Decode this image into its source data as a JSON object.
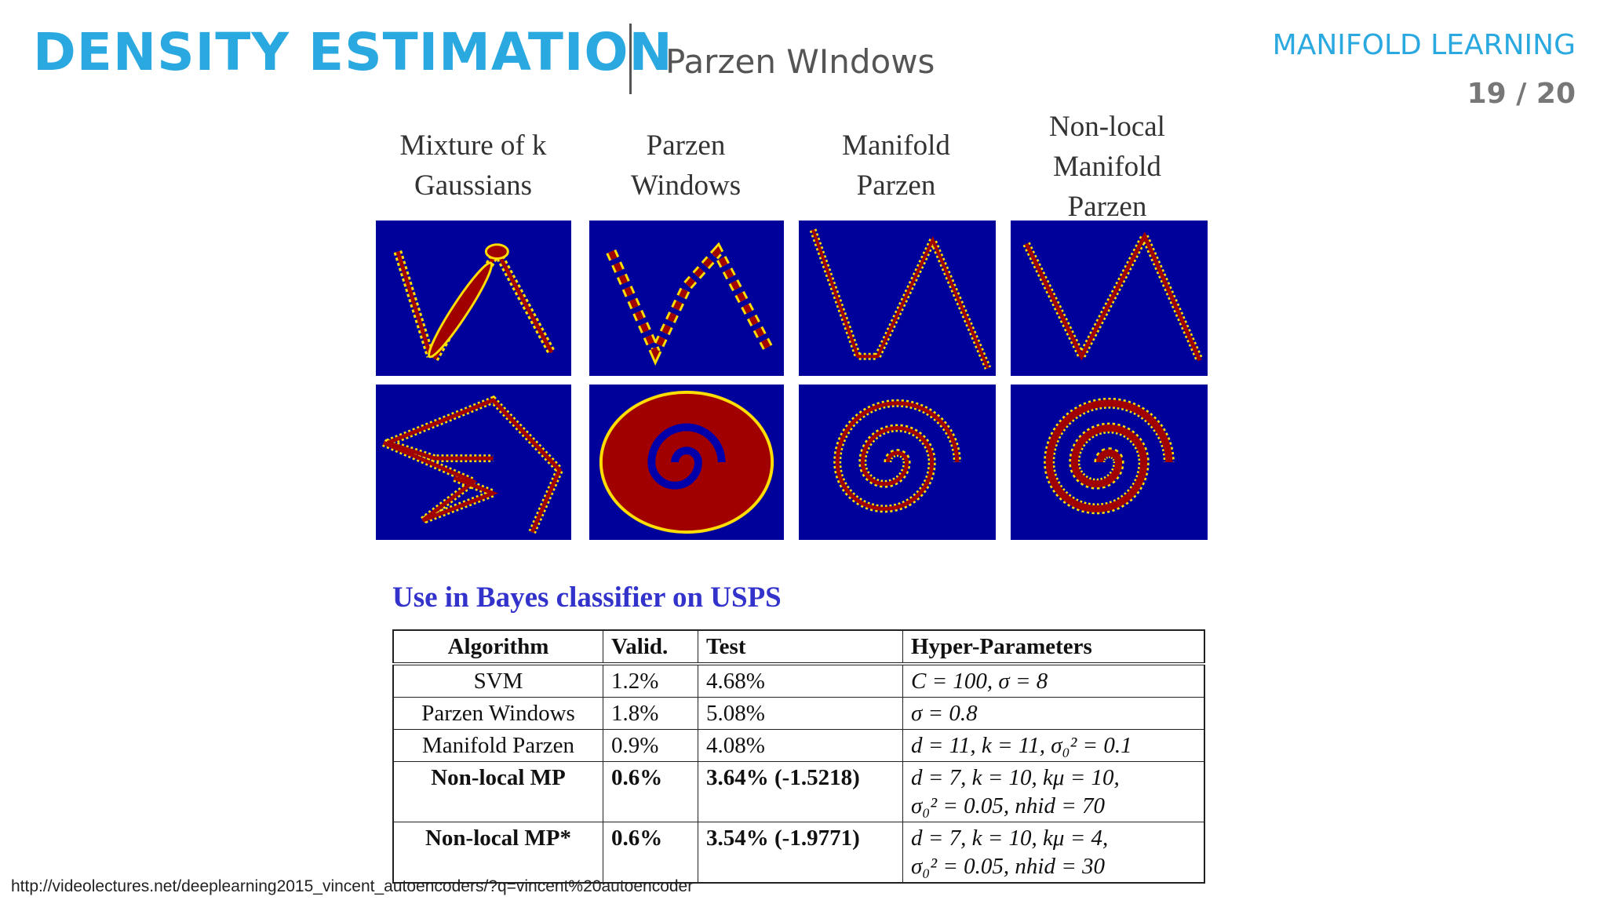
{
  "header": {
    "title": "DENSITY ESTIMATION",
    "subtitle": "Parzen WIndows",
    "section": "MANIFOLD LEARNING",
    "page": "19 / 20"
  },
  "figure": {
    "columns": [
      {
        "lines": [
          "Mixture of k",
          "Gaussians"
        ]
      },
      {
        "lines": [
          "Parzen",
          "Windows"
        ]
      },
      {
        "lines": [
          "Manifold",
          "Parzen"
        ]
      },
      {
        "lines": [
          "Non-local",
          "Manifold",
          "Parzen"
        ]
      }
    ],
    "colors": {
      "background": "#00009a",
      "density": "#a00000",
      "edge": "#ffdd00"
    }
  },
  "usps": {
    "heading": "Use in Bayes classifier on USPS",
    "headers": [
      "Algorithm",
      "Valid.",
      "Test",
      "Hyper-Parameters"
    ],
    "rows": [
      {
        "algorithm": "SVM",
        "valid": "1.2%",
        "test": "4.68%",
        "hyper": [
          "C = 100, σ = 8"
        ]
      },
      {
        "algorithm": "Parzen Windows",
        "valid": "1.8%",
        "test": "5.08%",
        "hyper": [
          "σ = 0.8"
        ]
      },
      {
        "algorithm": "Manifold Parzen",
        "valid": "0.9%",
        "test": "4.08%",
        "hyper": [
          "d = 11, k = 11, σ₀² = 0.1"
        ]
      },
      {
        "algorithm": "Non-local MP",
        "valid": "0.6%",
        "test": "3.64% (-1.5218)",
        "hyper": [
          "d = 7, k = 10, kμ = 10,",
          "σ₀² = 0.05, nhid = 70"
        ]
      },
      {
        "algorithm": "Non-local MP*",
        "valid": "0.6%",
        "test": "3.54% (-1.9771)",
        "hyper": [
          "d = 7, k = 10, kμ = 4,",
          "σ₀² = 0.05, nhid = 30"
        ]
      }
    ]
  },
  "footer": {
    "url": "http://videolectures.net/deeplearning2015_vincent_autoencoders/?q=vincent%20autoencoder"
  }
}
